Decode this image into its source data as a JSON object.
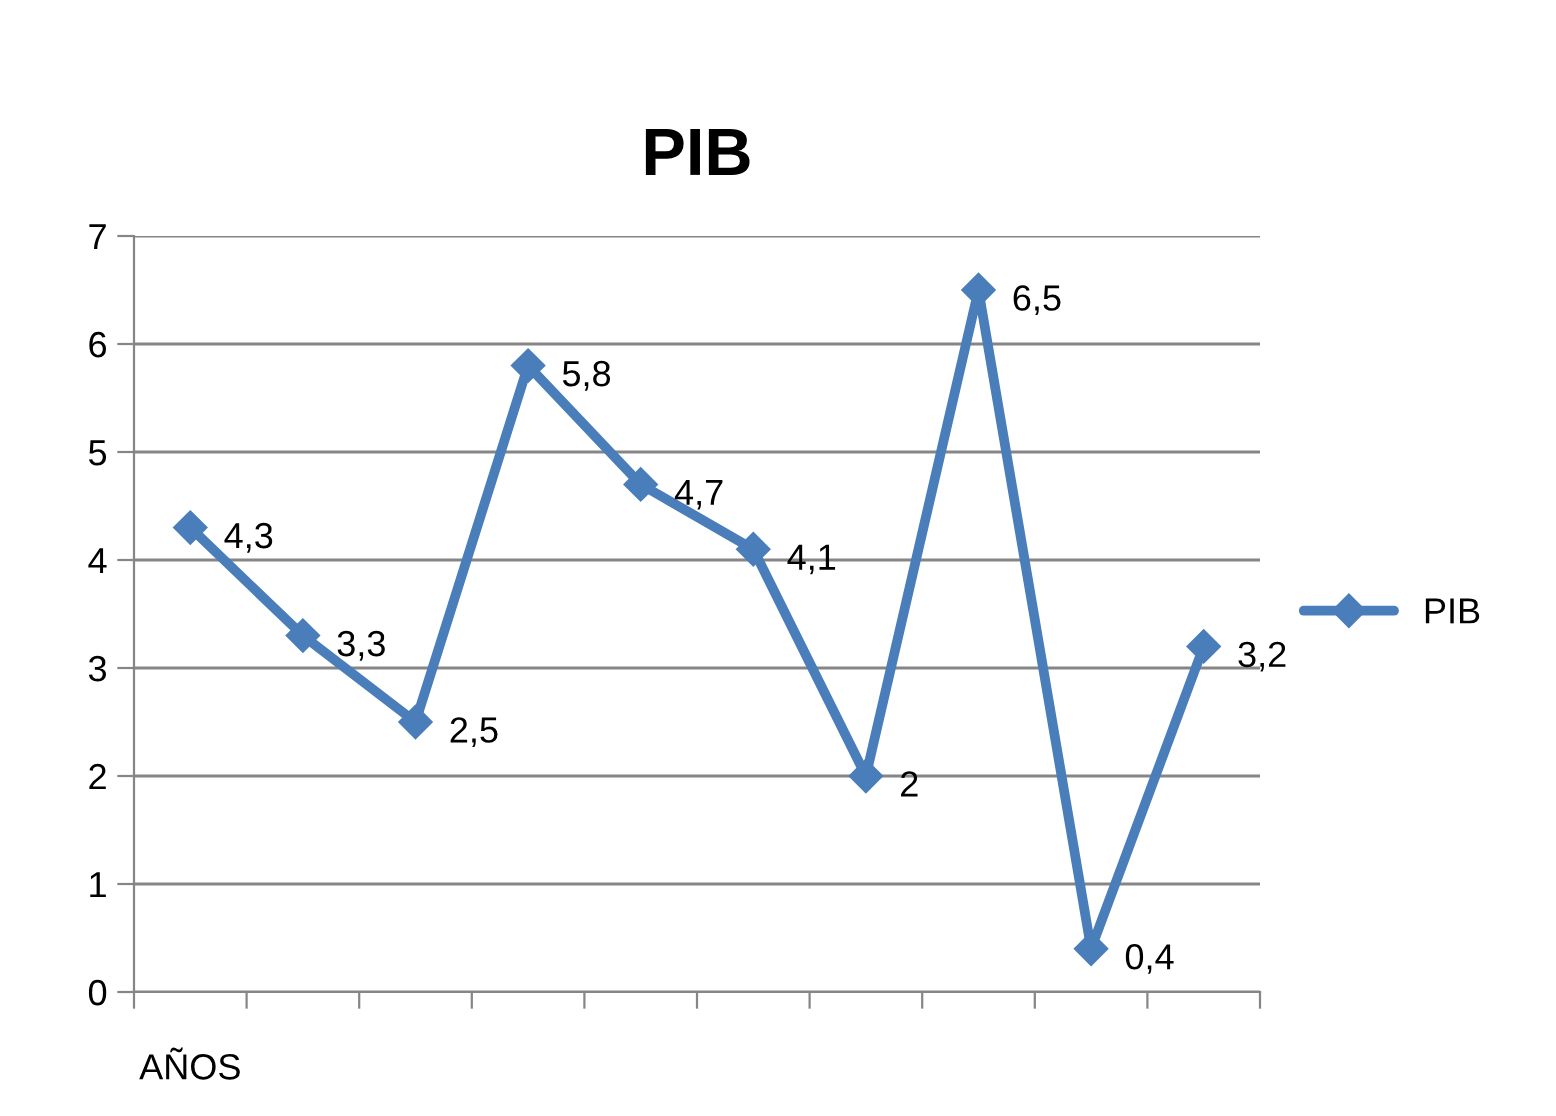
{
  "chart_data": {
    "type": "line",
    "title": "PIB",
    "categories": [
      "AÑOS",
      null,
      null,
      null,
      null,
      null,
      null,
      null,
      null,
      null
    ],
    "series": [
      {
        "name": "PIB",
        "color": "#4a7ebb",
        "values": [
          4.3,
          3.3,
          2.5,
          5.8,
          4.7,
          4.1,
          2,
          6.5,
          0.4,
          3.2
        ],
        "value_labels": [
          "4,3",
          "3,3",
          "2,5",
          "5,8",
          "4,7",
          "4,1",
          "2",
          "6,5",
          "0,4",
          "3,2"
        ]
      }
    ],
    "ylim": [
      0,
      7
    ],
    "yticks": [
      0,
      1,
      2,
      3,
      4,
      5,
      6,
      7
    ],
    "grid": "y",
    "legend": "right",
    "marker": "diamond",
    "line_style": "solid"
  }
}
